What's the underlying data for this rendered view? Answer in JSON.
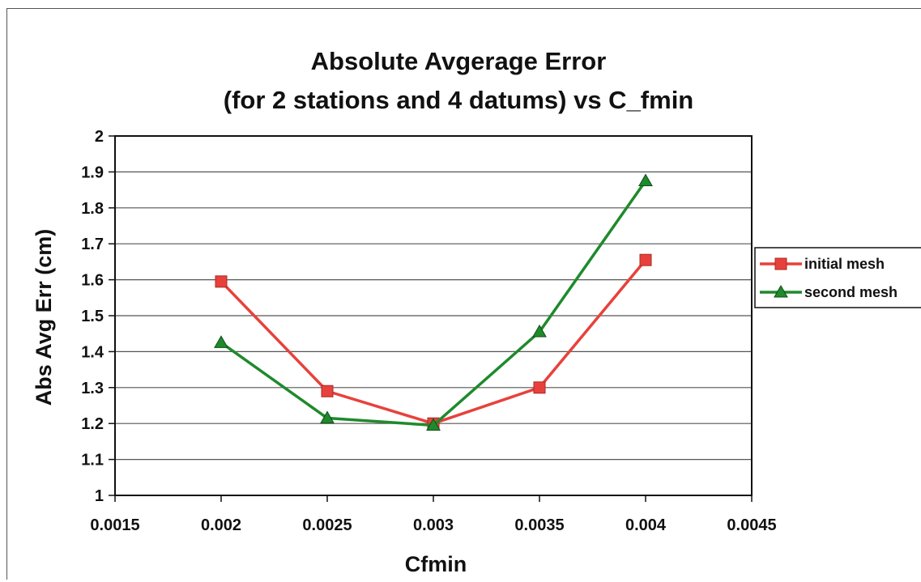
{
  "chart_data": {
    "type": "scatter",
    "title_lines": [
      "Absolute Avgerage Error",
      "(for 2 stations and 4 datums) vs C_fmin"
    ],
    "xlabel": "Cfmin",
    "ylabel": "Abs Avg Err (cm)",
    "xlim": [
      0.0015,
      0.0045
    ],
    "ylim": [
      1,
      2
    ],
    "x_ticks": [
      "0.0015",
      "0.002",
      "0.0025",
      "0.003",
      "0.0035",
      "0.004",
      "0.0045"
    ],
    "y_ticks": [
      "1",
      "1.1",
      "1.2",
      "1.3",
      "1.4",
      "1.5",
      "1.6",
      "1.7",
      "1.8",
      "1.9",
      "2"
    ],
    "grid": "horizontal",
    "legend_position": "right",
    "series": [
      {
        "name": "initial mesh",
        "color": "#e8413b",
        "marker": "square",
        "x": [
          0.002,
          0.0025,
          0.003,
          0.0035,
          0.004
        ],
        "y": [
          1.595,
          1.29,
          1.2,
          1.3,
          1.655
        ]
      },
      {
        "name": "second mesh",
        "color": "#1f8a2c",
        "marker": "triangle",
        "x": [
          0.002,
          0.0025,
          0.003,
          0.0035,
          0.004
        ],
        "y": [
          1.425,
          1.215,
          1.195,
          1.455,
          1.875
        ]
      }
    ]
  }
}
